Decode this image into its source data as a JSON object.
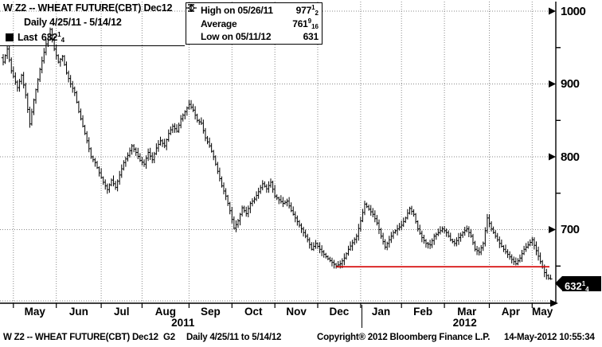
{
  "header": {
    "title": "W Z2 -- WHEAT FUTURE(CBT) Dec12",
    "subtitle": "Daily 4/25/11 - 5/14/12",
    "last_label": "Last",
    "last_value": {
      "int": "632",
      "num": "1",
      "den": "4"
    }
  },
  "legend": {
    "rows": [
      {
        "icon": "high-marker-icon",
        "label": "High on 05/26/11",
        "value_int": "977",
        "value_num": "1",
        "value_den": "2"
      },
      {
        "icon": "average-marker-icon",
        "label": "Average",
        "value_int": "761",
        "value_num": "9",
        "value_den": "16"
      },
      {
        "icon": "low-marker-icon",
        "label": "Low on 05/11/12",
        "value_int": "631",
        "value_num": "",
        "value_den": ""
      }
    ]
  },
  "axis": {
    "last_tag": {
      "int": "632",
      "num": "1",
      "den": "4"
    }
  },
  "footer": {
    "ticker": "W Z2 -- WHEAT FUTURE(CBT) Dec12",
    "panel": "G2",
    "range": "Daily 4/25/11 to 5/14/12",
    "copyright": "Copyright® 2012 Bloomberg Finance L.P.",
    "timestamp": "14-May-2012 10:55:34"
  },
  "chart_data": {
    "type": "ohlc_bar",
    "title": "W Z2 -- WHEAT FUTURE(CBT) Dec12",
    "xlabel": "",
    "ylabel": "",
    "x_range": [
      "4/25/11",
      "5/14/12"
    ],
    "ylim": [
      600,
      1011
    ],
    "grid": "dotted",
    "legend_position": "top",
    "y_axis": {
      "major_ticks": [
        1000,
        900,
        800,
        700
      ],
      "minor_ticks": [
        950,
        850,
        750,
        650
      ]
    },
    "months": [
      "May",
      "Jun",
      "Jul",
      "Aug",
      "Sep",
      "Oct",
      "Nov",
      "Dec",
      "Jan",
      "Feb",
      "Mar",
      "Apr",
      "May"
    ],
    "month_boundaries_td": [
      5,
      26,
      48,
      68,
      91,
      112,
      133,
      154,
      175,
      195,
      216,
      238,
      259,
      269
    ],
    "years": [
      {
        "label": "2011",
        "center_td": 88
      },
      {
        "label": "2012",
        "center_td": 226
      }
    ],
    "year_divider_td": 175,
    "total_days": 269,
    "stats": {
      "high": 977.5,
      "high_day": 23,
      "low": 631,
      "low_day": 267,
      "average": 761.5625,
      "last": 632.25
    },
    "support_line": {
      "price": 649,
      "start_day": 163,
      "end_x_frac": 0.993,
      "color": "#d40000"
    },
    "series": [
      {
        "name": "W Z2 close keypoints (trading-day index, price in cents)",
        "keypoints": [
          [
            0,
            930
          ],
          [
            2,
            948
          ],
          [
            4,
            918
          ],
          [
            7,
            895
          ],
          [
            9,
            912
          ],
          [
            11,
            885
          ],
          [
            13,
            845
          ],
          [
            15,
            878
          ],
          [
            18,
            920
          ],
          [
            21,
            955
          ],
          [
            23,
            975
          ],
          [
            25,
            948
          ],
          [
            27,
            930
          ],
          [
            29,
            938
          ],
          [
            31,
            915
          ],
          [
            33,
            900
          ],
          [
            35,
            888
          ],
          [
            37,
            862
          ],
          [
            39,
            842
          ],
          [
            41,
            822
          ],
          [
            43,
            800
          ],
          [
            45,
            792
          ],
          [
            47,
            778
          ],
          [
            49,
            765
          ],
          [
            51,
            755
          ],
          [
            53,
            768
          ],
          [
            55,
            758
          ],
          [
            57,
            775
          ],
          [
            59,
            792
          ],
          [
            61,
            802
          ],
          [
            63,
            815
          ],
          [
            65,
            806
          ],
          [
            67,
            795
          ],
          [
            69,
            790
          ],
          [
            71,
            806
          ],
          [
            73,
            796
          ],
          [
            75,
            812
          ],
          [
            77,
            822
          ],
          [
            79,
            815
          ],
          [
            81,
            832
          ],
          [
            83,
            842
          ],
          [
            85,
            835
          ],
          [
            87,
            852
          ],
          [
            89,
            862
          ],
          [
            91,
            872
          ],
          [
            93,
            864
          ],
          [
            95,
            850
          ],
          [
            97,
            846
          ],
          [
            99,
            826
          ],
          [
            101,
            815
          ],
          [
            103,
            800
          ],
          [
            105,
            780
          ],
          [
            107,
            760
          ],
          [
            109,
            746
          ],
          [
            111,
            726
          ],
          [
            113,
            702
          ],
          [
            115,
            712
          ],
          [
            117,
            730
          ],
          [
            119,
            722
          ],
          [
            121,
            736
          ],
          [
            123,
            742
          ],
          [
            125,
            752
          ],
          [
            127,
            763
          ],
          [
            129,
            756
          ],
          [
            131,
            765
          ],
          [
            133,
            746
          ],
          [
            135,
            741
          ],
          [
            137,
            736
          ],
          [
            139,
            739
          ],
          [
            141,
            726
          ],
          [
            143,
            716
          ],
          [
            145,
            706
          ],
          [
            147,
            696
          ],
          [
            149,
            686
          ],
          [
            151,
            673
          ],
          [
            153,
            681
          ],
          [
            155,
            673
          ],
          [
            157,
            666
          ],
          [
            159,
            660
          ],
          [
            161,
            655
          ],
          [
            163,
            650
          ],
          [
            165,
            653
          ],
          [
            167,
            661
          ],
          [
            169,
            673
          ],
          [
            171,
            682
          ],
          [
            173,
            691
          ],
          [
            175,
            712
          ],
          [
            177,
            735
          ],
          [
            179,
            728
          ],
          [
            181,
            721
          ],
          [
            183,
            709
          ],
          [
            185,
            691
          ],
          [
            187,
            676
          ],
          [
            189,
            686
          ],
          [
            191,
            696
          ],
          [
            193,
            701
          ],
          [
            195,
            706
          ],
          [
            197,
            716
          ],
          [
            199,
            729
          ],
          [
            201,
            721
          ],
          [
            203,
            701
          ],
          [
            205,
            689
          ],
          [
            207,
            681
          ],
          [
            209,
            679
          ],
          [
            211,
            691
          ],
          [
            213,
            696
          ],
          [
            215,
            701
          ],
          [
            217,
            696
          ],
          [
            219,
            686
          ],
          [
            221,
            681
          ],
          [
            223,
            689
          ],
          [
            225,
            696
          ],
          [
            227,
            701
          ],
          [
            229,
            691
          ],
          [
            231,
            673
          ],
          [
            233,
            669
          ],
          [
            235,
            681
          ],
          [
            237,
            716
          ],
          [
            239,
            701
          ],
          [
            241,
            691
          ],
          [
            243,
            681
          ],
          [
            245,
            673
          ],
          [
            247,
            666
          ],
          [
            249,
            659
          ],
          [
            251,
            653
          ],
          [
            253,
            661
          ],
          [
            255,
            673
          ],
          [
            257,
            679
          ],
          [
            259,
            686
          ],
          [
            261,
            671
          ],
          [
            263,
            656
          ],
          [
            265,
            641
          ],
          [
            267,
            633
          ],
          [
            268,
            632.25
          ]
        ]
      }
    ]
  }
}
